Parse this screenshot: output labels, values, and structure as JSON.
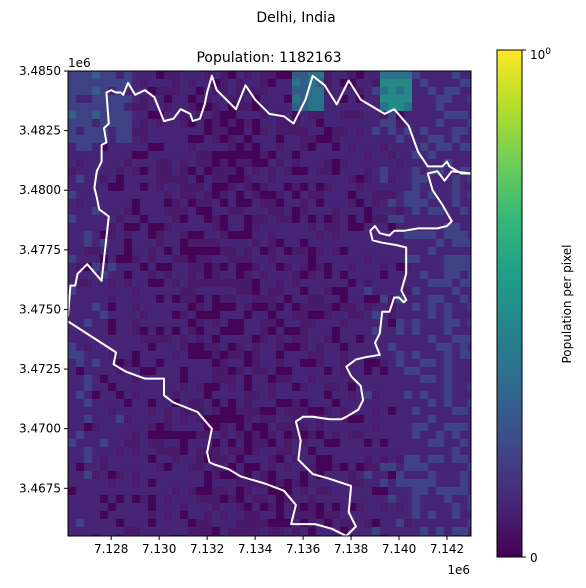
{
  "figure": {
    "suptitle": "Delhi, India"
  },
  "chart_data": {
    "type": "heatmap",
    "title": "Population: 1182163",
    "xlabel": "",
    "ylabel": "",
    "x_offset_label": "1e6",
    "y_offset_label": "1e6",
    "xlim": [
      7.1262,
      7.143
    ],
    "ylim": [
      3.4655,
      3.485
    ],
    "xticks": [
      7.128,
      7.13,
      7.132,
      7.134,
      7.136,
      7.138,
      7.14,
      7.142
    ],
    "xtick_labels": [
      "7.128",
      "7.130",
      "7.132",
      "7.134",
      "7.136",
      "7.138",
      "7.140",
      "7.142"
    ],
    "yticks": [
      3.4675,
      3.47,
      3.4725,
      3.475,
      3.4775,
      3.48,
      3.4825,
      3.485
    ],
    "ytick_labels": [
      "3.4675",
      "3.4700",
      "3.4725",
      "3.4750",
      "3.4775",
      "3.4800",
      "3.4825",
      "3.4850"
    ],
    "colorbar": {
      "label": "Population per pixel",
      "min": 0,
      "max": 1,
      "tick_bottom": "0",
      "tick_top_base": "10",
      "tick_top_exp": "0",
      "colormap": [
        "#440154",
        "#482878",
        "#3e4989",
        "#31688e",
        "#26828e",
        "#1f9e89",
        "#35b779",
        "#6ece58",
        "#b5de2b",
        "#fde725"
      ]
    },
    "boundary": {
      "color": "#ffffff",
      "points": [
        [
          7.1262,
          3.4747
        ],
        [
          7.1263,
          3.476
        ],
        [
          7.1265,
          3.476
        ],
        [
          7.1266,
          3.4765
        ],
        [
          7.127,
          3.4769
        ],
        [
          7.1276,
          3.4762
        ],
        [
          7.1279,
          3.4789
        ],
        [
          7.1275,
          3.4792
        ],
        [
          7.1274,
          3.4797
        ],
        [
          7.1273,
          3.4801
        ],
        [
          7.1274,
          3.4808
        ],
        [
          7.1276,
          3.4812
        ],
        [
          7.1276,
          3.4819
        ],
        [
          7.1278,
          3.482
        ],
        [
          7.1277,
          3.4826
        ],
        [
          7.1279,
          3.4828
        ],
        [
          7.1278,
          3.4841
        ],
        [
          7.128,
          3.4842
        ],
        [
          7.1282,
          3.4841
        ],
        [
          7.1284,
          3.4841
        ],
        [
          7.1285,
          3.484
        ],
        [
          7.1287,
          3.4845
        ],
        [
          7.129,
          3.484
        ],
        [
          7.1294,
          3.4842
        ],
        [
          7.1298,
          3.4839
        ],
        [
          7.1302,
          3.4829
        ],
        [
          7.1306,
          3.483
        ],
        [
          7.1309,
          3.4834
        ],
        [
          7.1313,
          3.4832
        ],
        [
          7.1314,
          3.4829
        ],
        [
          7.1317,
          3.483
        ],
        [
          7.1319,
          3.4836
        ],
        [
          7.132,
          3.4841
        ],
        [
          7.1322,
          3.4848
        ],
        [
          7.1324,
          3.4842
        ],
        [
          7.1328,
          3.4838
        ],
        [
          7.1332,
          3.4834
        ],
        [
          7.1336,
          3.4844
        ],
        [
          7.134,
          3.4838
        ],
        [
          7.1346,
          3.4832
        ],
        [
          7.1352,
          3.4831
        ],
        [
          7.1356,
          3.4828
        ],
        [
          7.1361,
          3.4838
        ],
        [
          7.1364,
          3.4848
        ],
        [
          7.1369,
          3.4844
        ],
        [
          7.1374,
          3.4836
        ],
        [
          7.1379,
          3.4846
        ],
        [
          7.1384,
          3.4838
        ],
        [
          7.1394,
          3.4832
        ],
        [
          7.1398,
          3.4834
        ],
        [
          7.1404,
          3.4827
        ],
        [
          7.1408,
          3.4816
        ],
        [
          7.1412,
          3.481
        ],
        [
          7.1418,
          3.481
        ],
        [
          7.142,
          3.4812
        ],
        [
          7.1421,
          3.481
        ],
        [
          7.1426,
          3.4807
        ],
        [
          7.143,
          3.4807
        ],
        [
          7.1422,
          3.4808
        ],
        [
          7.1419,
          3.4804
        ],
        [
          7.1416,
          3.4808
        ],
        [
          7.1412,
          3.4807
        ],
        [
          7.1414,
          3.48
        ],
        [
          7.1418,
          3.4794
        ],
        [
          7.1422,
          3.4787
        ],
        [
          7.142,
          3.4785
        ],
        [
          7.1416,
          3.4784
        ],
        [
          7.1408,
          3.4784
        ],
        [
          7.1402,
          3.4783
        ],
        [
          7.1398,
          3.4783
        ],
        [
          7.1396,
          3.4781
        ],
        [
          7.1392,
          3.4782
        ],
        [
          7.139,
          3.4785
        ],
        [
          7.1388,
          3.4783
        ],
        [
          7.1389,
          3.4779
        ],
        [
          7.1393,
          3.4778
        ],
        [
          7.1399,
          3.4777
        ],
        [
          7.1403,
          3.4776
        ],
        [
          7.1403,
          3.4765
        ],
        [
          7.1401,
          3.4758
        ],
        [
          7.1403,
          3.4754
        ],
        [
          7.1402,
          3.4753
        ],
        [
          7.14,
          3.4755
        ],
        [
          7.1398,
          3.4755
        ],
        [
          7.1396,
          3.4749
        ],
        [
          7.1393,
          3.4749
        ],
        [
          7.1392,
          3.474
        ],
        [
          7.139,
          3.4736
        ],
        [
          7.1392,
          3.4731
        ],
        [
          7.1386,
          3.473
        ],
        [
          7.1382,
          3.4729
        ],
        [
          7.1378,
          3.4726
        ],
        [
          7.138,
          3.4722
        ],
        [
          7.1384,
          3.4718
        ],
        [
          7.1385,
          3.4712
        ],
        [
          7.1383,
          3.4708
        ],
        [
          7.1378,
          3.4705
        ],
        [
          7.1376,
          3.4704
        ],
        [
          7.1371,
          3.4704
        ],
        [
          7.1364,
          3.4705
        ],
        [
          7.136,
          3.4705
        ],
        [
          7.1357,
          3.4703
        ],
        [
          7.1359,
          3.4695
        ],
        [
          7.1358,
          3.4687
        ],
        [
          7.1364,
          3.4681
        ],
        [
          7.1371,
          3.4679
        ],
        [
          7.138,
          3.4676
        ],
        [
          7.1379,
          3.4665
        ],
        [
          7.1382,
          3.4659
        ],
        [
          7.1378,
          3.4655
        ],
        [
          7.1372,
          3.4658
        ],
        [
          7.1365,
          3.466
        ],
        [
          7.1355,
          3.466
        ],
        [
          7.1357,
          3.4668
        ],
        [
          7.1352,
          3.4674
        ],
        [
          7.1344,
          3.4677
        ],
        [
          7.1334,
          3.468
        ],
        [
          7.1329,
          3.4683
        ],
        [
          7.1323,
          3.4685
        ],
        [
          7.1321,
          3.4686
        ],
        [
          7.132,
          3.469
        ],
        [
          7.1322,
          3.47
        ],
        [
          7.1316,
          3.4707
        ],
        [
          7.1306,
          3.4711
        ],
        [
          7.1302,
          3.4714
        ],
        [
          7.1302,
          3.4721
        ],
        [
          7.1294,
          3.4721
        ],
        [
          7.1286,
          3.4724
        ],
        [
          7.1281,
          3.4727
        ],
        [
          7.1282,
          3.4732
        ],
        [
          7.1262,
          3.4745
        ]
      ]
    }
  }
}
